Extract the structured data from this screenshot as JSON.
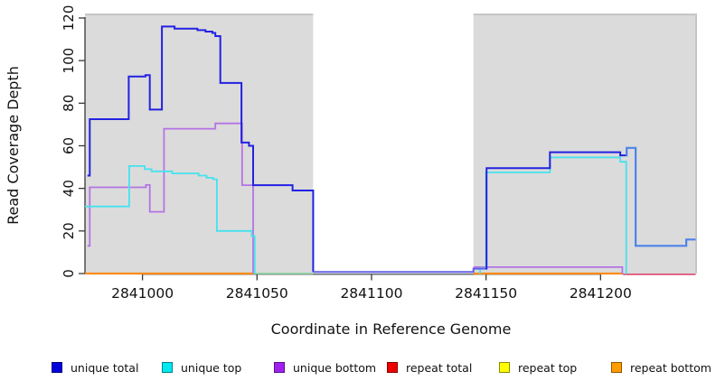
{
  "chart_data": {
    "type": "step-line",
    "title": "",
    "xlabel": "Coordinate in Reference Genome",
    "ylabel": "Read Coverage Depth",
    "xlim": [
      2840974.9,
      2841242.1
    ],
    "ylim": [
      0,
      122.1
    ],
    "x_ticks": [
      2841000,
      2841050,
      2841100,
      2841150,
      2841200
    ],
    "y_ticks": [
      0,
      20,
      40,
      60,
      80,
      100,
      120
    ],
    "grid": false,
    "background": "#ffffff",
    "shaded_region_color": "#dbdbdb",
    "shaded_region_edge_color": "#c6c6c6",
    "axis_color": "#383838",
    "text_color": "#111111",
    "shaded_regions": [
      {
        "name": "repeat-region-left",
        "x0": 2840974.9,
        "x1": 2841074.5
      },
      {
        "name": "repeat-region-right",
        "x0": 2841144.5,
        "x1": 2841242.1
      }
    ],
    "series": [
      {
        "id": "repeat-bottom-left",
        "legend_key": "repeat bottom",
        "color": "#ff8c1a",
        "width": 2.2,
        "points": [
          [
            2840974.9,
            0
          ]
        ],
        "x_end": 2841048.3
      },
      {
        "id": "zero-overlap-segment",
        "legend_key": "repeat top",
        "color": "#8fd6a5",
        "width": 1.8,
        "points": [
          [
            2841048.3,
            0
          ]
        ],
        "x_end": 2841074.5
      },
      {
        "id": "repeat-bottom-right",
        "legend_key": "repeat bottom",
        "color": "#ff8c1a",
        "width": 2.2,
        "points": [
          [
            2841144.5,
            0
          ]
        ],
        "x_end": 2841209.8
      },
      {
        "id": "repeat-total-right",
        "legend_key": "repeat total",
        "color": "#dc5377",
        "width": 1.8,
        "points": [
          [
            2841209.8,
            -0.4
          ]
        ],
        "x_end": 2841241.5
      },
      {
        "id": "unique-bottom-left",
        "legend_key": "unique bottom",
        "color": "#b473e4",
        "width": 1.8,
        "points": [
          [
            2840976,
            13
          ],
          [
            2840977,
            40.5
          ],
          [
            2841001.5,
            41.6
          ],
          [
            2841003.2,
            29
          ],
          [
            2841009.4,
            68
          ],
          [
            2841031.8,
            70.5
          ],
          [
            2841043.5,
            41.5
          ],
          [
            2841048.3,
            0
          ]
        ],
        "x_end": 2841048.3
      },
      {
        "id": "unique-bottom-right",
        "legend_key": "unique bottom",
        "color": "#b473e4",
        "width": 1.8,
        "points": [
          [
            2841144.5,
            3
          ],
          [
            2841209.5,
            0
          ]
        ],
        "x_end": 2841209.8
      },
      {
        "id": "unique-top-left",
        "legend_key": "unique top",
        "color": "#45e2ee",
        "width": 1.8,
        "points": [
          [
            2840974.9,
            31.5
          ],
          [
            2840994.2,
            50.5
          ],
          [
            2841001,
            49
          ],
          [
            2841004,
            48
          ],
          [
            2841013,
            47
          ],
          [
            2841024.5,
            46
          ],
          [
            2841028,
            45
          ],
          [
            2841030.8,
            44.3
          ],
          [
            2841032.5,
            20
          ],
          [
            2841047.7,
            17.5
          ],
          [
            2841049,
            0
          ]
        ],
        "x_end": 2841049
      },
      {
        "id": "unique-top-right",
        "legend_key": "unique top",
        "color": "#45e2ee",
        "width": 1.8,
        "points": [
          [
            2841147,
            0.3
          ],
          [
            2841147.4,
            2.5
          ],
          [
            2841150,
            47.5
          ],
          [
            2841177.9,
            54.5
          ],
          [
            2841208.6,
            52.5
          ],
          [
            2841211.2,
            0
          ]
        ],
        "x_end": 2841211.3
      },
      {
        "id": "unique-total-left",
        "legend_key": "unique total",
        "color": "#2222e2",
        "width": 2,
        "points": [
          [
            2840976,
            46
          ],
          [
            2840977,
            72.5
          ],
          [
            2840994,
            92.5
          ],
          [
            2841001.3,
            93.2
          ],
          [
            2841003.2,
            77
          ],
          [
            2841008.5,
            116
          ],
          [
            2841014,
            115
          ],
          [
            2841024,
            114.3
          ],
          [
            2841027.5,
            113.6
          ],
          [
            2841030.5,
            113
          ],
          [
            2841031.8,
            111.5
          ],
          [
            2841034,
            89.5
          ],
          [
            2841043.2,
            61.5
          ],
          [
            2841046.5,
            60
          ],
          [
            2841048.3,
            41.5
          ],
          [
            2841065.5,
            39
          ],
          [
            2841074.5,
            0.7
          ]
        ],
        "x_end": 2841074.5
      },
      {
        "id": "unique-total-gap",
        "legend_key": "unique total",
        "color": "#6161e6",
        "width": 2,
        "points": [
          [
            2841074.5,
            0.7
          ],
          [
            2841144.5,
            2.3
          ]
        ],
        "x_end": 2841149.8
      },
      {
        "id": "unique-total-right",
        "legend_key": "unique total",
        "color": "#2222e2",
        "width": 2,
        "points": [
          [
            2841149.8,
            2.3
          ],
          [
            2841150.2,
            49.5
          ],
          [
            2841177.9,
            57
          ],
          [
            2841208.6,
            55.5
          ]
        ],
        "x_end": 2841211.2
      },
      {
        "id": "unique-total-right-tail",
        "legend_key": "unique total",
        "color": "#4d82ea",
        "width": 2.2,
        "points": [
          [
            2841211.2,
            55.5
          ],
          [
            2841211.4,
            59
          ],
          [
            2841215.3,
            13
          ],
          [
            2841237.4,
            16
          ]
        ],
        "x_end": 2841241.5
      }
    ],
    "legend_position": "bottom",
    "legend": [
      {
        "label": "unique total",
        "color": "#0000dd"
      },
      {
        "label": "unique top",
        "color": "#00e8f0"
      },
      {
        "label": "unique bottom",
        "color": "#a020f0"
      },
      {
        "label": "repeat total",
        "color": "#ee0000"
      },
      {
        "label": "repeat top",
        "color": "#ffff00"
      },
      {
        "label": "repeat bottom",
        "color": "#ff9d00"
      }
    ]
  }
}
